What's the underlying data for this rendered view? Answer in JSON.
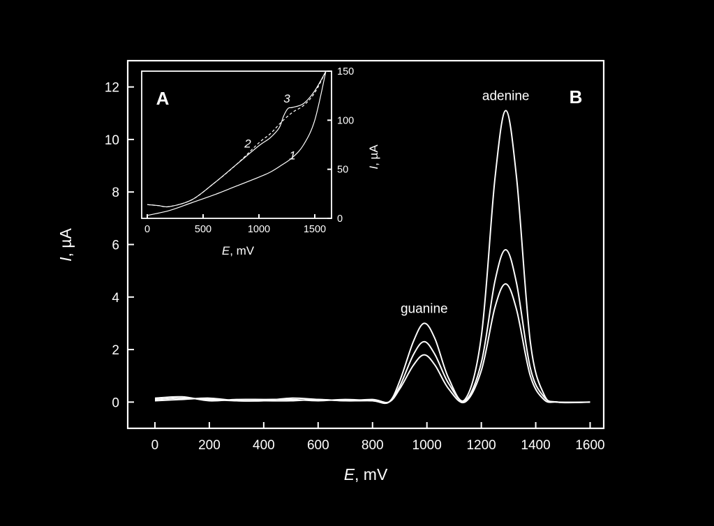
{
  "chart_data": [
    {
      "panel": "B",
      "type": "line",
      "xlabel": {
        "symbol": "E",
        "unit": ", mV"
      },
      "ylabel": {
        "symbol": "I",
        "unit": ", µA"
      },
      "xlim": [
        -100,
        1650
      ],
      "ylim": [
        -1,
        13
      ],
      "x_ticks": [
        0,
        200,
        400,
        600,
        800,
        1000,
        1200,
        1400,
        1600
      ],
      "y_ticks": [
        0,
        2,
        4,
        6,
        8,
        10,
        12
      ],
      "grid": false,
      "legend": "none",
      "annotations": [
        {
          "text": "guanine",
          "x": 990,
          "y": 3.4
        },
        {
          "text": "adenine",
          "x": 1290,
          "y": 11.5
        }
      ],
      "series": [
        {
          "x": [
            0,
            100,
            200,
            300,
            400,
            500,
            600,
            700,
            800,
            860,
            900,
            950,
            990,
            1030,
            1080,
            1140,
            1200,
            1250,
            1290,
            1330,
            1380,
            1430,
            1480,
            1600
          ],
          "y": [
            0.1,
            0.15,
            0.1,
            0.05,
            0.05,
            0.15,
            0.1,
            0.05,
            0.05,
            0.0,
            0.8,
            2.3,
            3.0,
            2.4,
            0.9,
            0.1,
            2.5,
            8.5,
            11.1,
            8.5,
            2.3,
            0.3,
            0.0,
            0.0
          ]
        },
        {
          "x": [
            0,
            100,
            200,
            300,
            400,
            500,
            600,
            700,
            800,
            860,
            900,
            950,
            990,
            1030,
            1080,
            1140,
            1200,
            1250,
            1290,
            1330,
            1380,
            1430,
            1480,
            1600
          ],
          "y": [
            0.15,
            0.2,
            0.05,
            0.1,
            0.1,
            0.1,
            0.05,
            0.1,
            0.05,
            0.0,
            0.6,
            1.8,
            2.3,
            1.8,
            0.7,
            0.05,
            1.5,
            4.6,
            5.8,
            4.5,
            1.3,
            0.2,
            0.0,
            0.0
          ]
        },
        {
          "x": [
            0,
            100,
            200,
            300,
            400,
            500,
            600,
            700,
            800,
            860,
            900,
            950,
            990,
            1030,
            1080,
            1140,
            1200,
            1250,
            1290,
            1330,
            1380,
            1430,
            1480,
            1600
          ],
          "y": [
            0.05,
            0.1,
            0.15,
            0.05,
            0.05,
            0.05,
            0.1,
            0.05,
            0.1,
            0.0,
            0.5,
            1.4,
            1.8,
            1.4,
            0.5,
            0.0,
            1.2,
            3.6,
            4.5,
            3.5,
            1.0,
            0.1,
            0.0,
            0.0
          ]
        }
      ]
    },
    {
      "panel": "A",
      "type": "line",
      "xlabel": {
        "symbol": "E",
        "unit": ", mV"
      },
      "ylabel": {
        "symbol": "I",
        "unit": ", µA"
      },
      "xlim": [
        -50,
        1650
      ],
      "ylim": [
        0,
        150
      ],
      "x_ticks": [
        0,
        500,
        1000,
        1500
      ],
      "y_ticks": [
        0,
        50,
        100,
        150
      ],
      "grid": false,
      "legend": "none",
      "annotations": [
        {
          "text": "1",
          "x": 1300,
          "y": 60
        },
        {
          "text": "2",
          "x": 900,
          "y": 72
        },
        {
          "text": "3",
          "x": 1250,
          "y": 118
        }
      ],
      "series": [
        {
          "name": "1",
          "x": [
            0,
            200,
            400,
            600,
            800,
            1000,
            1100,
            1200,
            1300,
            1400,
            1500,
            1600
          ],
          "y": [
            3,
            8,
            16,
            24,
            33,
            42,
            47,
            54,
            62,
            75,
            100,
            150
          ]
        },
        {
          "name": "2",
          "style": "dashed",
          "x": [
            0,
            100,
            200,
            400,
            600,
            800,
            1000,
            1100,
            1200,
            1300,
            1400,
            1500,
            1600
          ],
          "y": [
            14,
            13,
            12,
            19,
            36,
            55,
            77,
            86,
            98,
            108,
            115,
            128,
            150
          ]
        },
        {
          "name": "3",
          "x": [
            0,
            100,
            200,
            400,
            600,
            800,
            1000,
            1100,
            1180,
            1220,
            1260,
            1300,
            1400,
            1500,
            1600
          ],
          "y": [
            14,
            13,
            12,
            19,
            36,
            55,
            74,
            82,
            92,
            104,
            112,
            113,
            117,
            130,
            150
          ]
        }
      ]
    }
  ],
  "panel_labels": {
    "main": "B",
    "inset": "A"
  }
}
